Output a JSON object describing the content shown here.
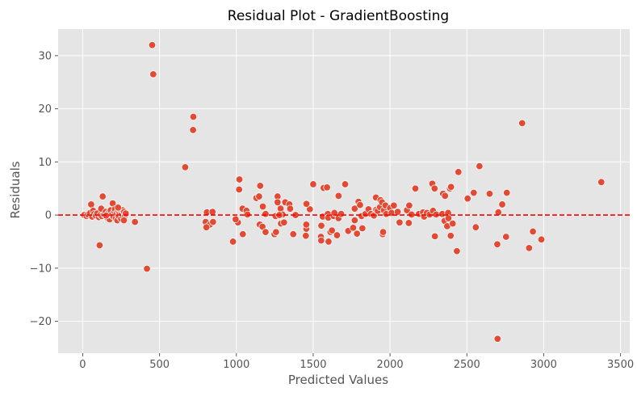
{
  "chart_data": {
    "type": "scatter",
    "title": "Residual Plot - GradientBoosting",
    "xlabel": "Predicted Values",
    "ylabel": "Residuals",
    "xlim": [
      -160,
      3560
    ],
    "ylim": [
      -26,
      35
    ],
    "x_ticks": [
      0,
      500,
      1000,
      1500,
      2000,
      2500,
      3000,
      3500
    ],
    "y_ticks": [
      -20,
      -10,
      0,
      10,
      20,
      30
    ],
    "y_tick_labels": [
      "−20",
      "−10",
      "0",
      "10",
      "20",
      "30"
    ],
    "grid": true,
    "reference_line": {
      "y": 0,
      "style": "dashed",
      "color": "#ff0000"
    },
    "colors": {
      "background": "#e5e5e5",
      "grid": "#ffffff",
      "point": "#e24a33",
      "point_edge": "#ffffff"
    },
    "points": [
      [
        452,
        32.0
      ],
      [
        459,
        26.5
      ],
      [
        720,
        18.5
      ],
      [
        718,
        16.0
      ],
      [
        2860,
        17.3
      ],
      [
        667,
        9.0
      ],
      [
        2582,
        9.2
      ],
      [
        2445,
        8.1
      ],
      [
        3375,
        6.2
      ],
      [
        1020,
        6.7
      ],
      [
        1018,
        4.8
      ],
      [
        1155,
        5.5
      ],
      [
        1500,
        5.8
      ],
      [
        1708,
        5.8
      ],
      [
        1568,
        5.1
      ],
      [
        1590,
        5.2
      ],
      [
        2165,
        5.0
      ],
      [
        2275,
        5.9
      ],
      [
        2290,
        5.0
      ],
      [
        2390,
        5.0
      ],
      [
        2397,
        5.3
      ],
      [
        2345,
        4.0
      ],
      [
        2358,
        3.6
      ],
      [
        2545,
        4.2
      ],
      [
        2648,
        4.0
      ],
      [
        2760,
        4.2
      ],
      [
        2505,
        3.1
      ],
      [
        2730,
        2.0
      ],
      [
        2705,
        0.5
      ],
      [
        1130,
        3.2
      ],
      [
        1148,
        3.5
      ],
      [
        1268,
        3.5
      ],
      [
        1318,
        2.4
      ],
      [
        1345,
        2.0
      ],
      [
        1350,
        1.2
      ],
      [
        1478,
        1.1
      ],
      [
        1456,
        2.1
      ],
      [
        1385,
        0.0
      ],
      [
        1268,
        2.4
      ],
      [
        1288,
        1.2
      ],
      [
        1300,
        0.1
      ],
      [
        1172,
        1.6
      ],
      [
        1040,
        1.2
      ],
      [
        1066,
        0.8
      ],
      [
        1072,
        0.1
      ],
      [
        1190,
        0.2
      ],
      [
        1255,
        -0.2
      ],
      [
        1280,
        0.0
      ],
      [
        1010,
        -1.4
      ],
      [
        995,
        -0.8
      ],
      [
        978,
        -5.0
      ],
      [
        1042,
        -3.6
      ],
      [
        1152,
        -1.8
      ],
      [
        1170,
        -2.2
      ],
      [
        1190,
        -3.2
      ],
      [
        1248,
        -3.6
      ],
      [
        1258,
        -3.2
      ],
      [
        1290,
        -1.6
      ],
      [
        1310,
        -1.4
      ],
      [
        1370,
        -3.6
      ],
      [
        1455,
        -2.6
      ],
      [
        1452,
        -3.9
      ],
      [
        1455,
        -1.8
      ],
      [
        1550,
        -4.1
      ],
      [
        1552,
        -4.8
      ],
      [
        1553,
        -2.0
      ],
      [
        1562,
        -0.3
      ],
      [
        1595,
        0.2
      ],
      [
        1598,
        -0.5
      ],
      [
        1600,
        -5.0
      ],
      [
        1612,
        -3.2
      ],
      [
        1622,
        -2.9
      ],
      [
        1633,
        -0.2
      ],
      [
        1638,
        0.4
      ],
      [
        1655,
        -3.8
      ],
      [
        1665,
        -0.6
      ],
      [
        1665,
        3.6
      ],
      [
        1682,
        0.2
      ],
      [
        1728,
        -3.0
      ],
      [
        1760,
        -2.4
      ],
      [
        1770,
        -1.0
      ],
      [
        1770,
        1.2
      ],
      [
        1785,
        -3.5
      ],
      [
        1795,
        2.5
      ],
      [
        1805,
        1.9
      ],
      [
        1815,
        -0.2
      ],
      [
        1820,
        -2.5
      ],
      [
        1840,
        0.2
      ],
      [
        1860,
        1.1
      ],
      [
        1876,
        0.2
      ],
      [
        1895,
        -0.1
      ],
      [
        1908,
        3.3
      ],
      [
        1910,
        1.0
      ],
      [
        1920,
        0.8
      ],
      [
        1935,
        1.5
      ],
      [
        1938,
        2.8
      ],
      [
        1948,
        2.4
      ],
      [
        1952,
        -3.6
      ],
      [
        1955,
        -3.2
      ],
      [
        1960,
        0.9
      ],
      [
        1970,
        1.8
      ],
      [
        1975,
        0.2
      ],
      [
        2000,
        1.3
      ],
      [
        2010,
        0.4
      ],
      [
        2025,
        1.8
      ],
      [
        2050,
        0.6
      ],
      [
        2062,
        -1.4
      ],
      [
        2110,
        0.9
      ],
      [
        2122,
        -1.5
      ],
      [
        2125,
        1.8
      ],
      [
        2140,
        0.1
      ],
      [
        2188,
        0.2
      ],
      [
        2215,
        0.5
      ],
      [
        2222,
        -0.3
      ],
      [
        2240,
        0.4
      ],
      [
        2258,
        0.1
      ],
      [
        2280,
        0.8
      ],
      [
        2292,
        -4.0
      ],
      [
        2300,
        0.1
      ],
      [
        2340,
        0.2
      ],
      [
        2355,
        -1.1
      ],
      [
        2372,
        -2.1
      ],
      [
        2378,
        0.4
      ],
      [
        2380,
        -0.6
      ],
      [
        2395,
        -3.9
      ],
      [
        2408,
        -1.6
      ],
      [
        2435,
        -6.8
      ],
      [
        2558,
        -2.3
      ],
      [
        2698,
        -5.5
      ],
      [
        2755,
        -4.1
      ],
      [
        2905,
        -6.2
      ],
      [
        2930,
        -3.1
      ],
      [
        2985,
        -4.6
      ],
      [
        2700,
        -23.3
      ],
      [
        418,
        -10.1
      ],
      [
        800,
        -1.3
      ],
      [
        808,
        0.5
      ],
      [
        845,
        0.6
      ],
      [
        828,
        -1.8
      ],
      [
        848,
        -1.3
      ],
      [
        805,
        -2.3
      ],
      [
        10,
        0.0
      ],
      [
        25,
        -0.2
      ],
      [
        35,
        0.1
      ],
      [
        48,
        0.4
      ],
      [
        55,
        2.0
      ],
      [
        62,
        -0.3
      ],
      [
        68,
        0.8
      ],
      [
        75,
        0.2
      ],
      [
        85,
        -0.1
      ],
      [
        95,
        0.3
      ],
      [
        105,
        -0.4
      ],
      [
        115,
        0.0
      ],
      [
        120,
        1.2
      ],
      [
        125,
        -0.2
      ],
      [
        130,
        3.5
      ],
      [
        140,
        0.1
      ],
      [
        150,
        0.6
      ],
      [
        160,
        -0.5
      ],
      [
        168,
        0.4
      ],
      [
        175,
        -0.8
      ],
      [
        182,
        0.9
      ],
      [
        188,
        0.0
      ],
      [
        195,
        2.2
      ],
      [
        200,
        -0.3
      ],
      [
        205,
        0.7
      ],
      [
        210,
        1.1
      ],
      [
        215,
        -0.6
      ],
      [
        220,
        0.3
      ],
      [
        225,
        -1.0
      ],
      [
        230,
        0.8
      ],
      [
        235,
        -0.2
      ],
      [
        240,
        0.5
      ],
      [
        245,
        1.0
      ],
      [
        250,
        -0.7
      ],
      [
        255,
        0.2
      ],
      [
        260,
        0.9
      ],
      [
        265,
        -0.4
      ],
      [
        270,
        0.6
      ],
      [
        275,
        -0.1
      ],
      [
        280,
        0.3
      ],
      [
        110,
        -5.7
      ],
      [
        340,
        -1.3
      ],
      [
        152,
        -0.1
      ],
      [
        230,
        1.4
      ],
      [
        268,
        -1.0
      ]
    ]
  }
}
